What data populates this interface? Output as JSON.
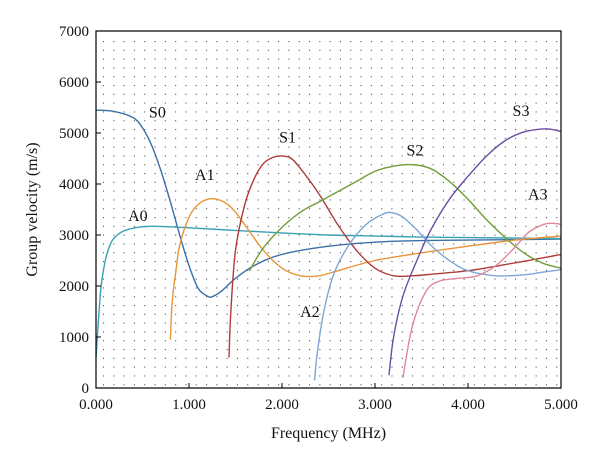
{
  "chart_data": {
    "type": "line",
    "title": "",
    "xlabel": "Frequency (MHz)",
    "ylabel": "Group velocity (m/s)",
    "xlim": [
      0,
      5
    ],
    "ylim": [
      0,
      7000
    ],
    "x_ticks": [
      0,
      1,
      2,
      3,
      4,
      5
    ],
    "x_tick_labels": [
      "0.000",
      "1.000",
      "2.000",
      "3.000",
      "4.000",
      "5.000"
    ],
    "y_ticks": [
      0,
      1000,
      2000,
      3000,
      4000,
      5000,
      6000,
      7000
    ],
    "y_tick_labels": [
      "0",
      "1000",
      "2000",
      "3000",
      "4000",
      "5000",
      "6000",
      "7000"
    ],
    "grid": "dotted",
    "legend": "none",
    "series": [
      {
        "name": "S0",
        "color": "#3a6fa8",
        "x": [
          0,
          0.2,
          0.4,
          0.5,
          0.6,
          0.7,
          0.8,
          0.9,
          1.0,
          1.1,
          1.2,
          1.25,
          1.35,
          1.5,
          1.7,
          2.0,
          2.5,
          3.0,
          3.5,
          4.0,
          4.5,
          5.0
        ],
        "y": [
          5450,
          5420,
          5300,
          5100,
          4750,
          4250,
          3650,
          3000,
          2400,
          1950,
          1800,
          1790,
          1900,
          2150,
          2400,
          2620,
          2780,
          2860,
          2890,
          2900,
          2910,
          2920
        ]
      },
      {
        "name": "A0",
        "color": "#3aa1b5",
        "x": [
          0,
          0.05,
          0.1,
          0.15,
          0.2,
          0.3,
          0.45,
          0.6,
          0.8,
          1.0,
          1.5,
          2.0,
          2.5,
          3.0,
          3.5,
          4.0,
          4.5,
          5.0
        ],
        "y": [
          600,
          1900,
          2500,
          2800,
          2950,
          3080,
          3150,
          3170,
          3160,
          3140,
          3090,
          3040,
          3000,
          2980,
          2960,
          2950,
          2940,
          2930
        ]
      },
      {
        "name": "A1",
        "color": "#e8953a",
        "x": [
          0.8,
          0.82,
          0.86,
          0.9,
          1.0,
          1.1,
          1.2,
          1.3,
          1.4,
          1.5,
          1.6,
          1.8,
          2.0,
          2.2,
          2.4,
          2.6,
          3.0,
          3.5,
          4.0,
          4.5,
          5.0
        ],
        "y": [
          950,
          1700,
          2300,
          2800,
          3350,
          3600,
          3700,
          3700,
          3620,
          3450,
          3200,
          2700,
          2350,
          2200,
          2200,
          2300,
          2500,
          2650,
          2780,
          2900,
          2980
        ]
      },
      {
        "name": "S1",
        "color": "#b03a3a",
        "x": [
          1.43,
          1.45,
          1.5,
          1.6,
          1.7,
          1.8,
          1.9,
          2.0,
          2.1,
          2.2,
          2.4,
          2.6,
          2.8,
          3.0,
          3.2,
          3.4,
          3.6,
          4.0,
          4.4,
          4.8,
          5.0
        ],
        "y": [
          600,
          1500,
          2700,
          3600,
          4100,
          4400,
          4520,
          4550,
          4500,
          4300,
          3800,
          3200,
          2700,
          2350,
          2200,
          2200,
          2230,
          2300,
          2420,
          2550,
          2620
        ]
      },
      {
        "name": "S2",
        "color": "#6f9e3a",
        "x": [
          1.65,
          1.8,
          2.0,
          2.2,
          2.4,
          2.6,
          2.8,
          3.0,
          3.2,
          3.4,
          3.6,
          3.8,
          4.0,
          4.2,
          4.4,
          4.6,
          4.8,
          5.0
        ],
        "y": [
          2300,
          2750,
          3150,
          3450,
          3650,
          3850,
          4050,
          4250,
          4350,
          4380,
          4300,
          4050,
          3700,
          3300,
          2950,
          2650,
          2450,
          2350
        ]
      },
      {
        "name": "A2",
        "color": "#7fa6d6",
        "x": [
          2.35,
          2.38,
          2.45,
          2.55,
          2.7,
          2.9,
          3.1,
          3.2,
          3.3,
          3.45,
          3.6,
          3.8,
          4.0,
          4.3,
          4.6,
          4.8,
          5.0
        ],
        "y": [
          150,
          700,
          1500,
          2200,
          2750,
          3200,
          3420,
          3430,
          3350,
          3100,
          2800,
          2500,
          2300,
          2200,
          2220,
          2270,
          2320
        ]
      },
      {
        "name": "S3",
        "color": "#6a4fa3",
        "x": [
          3.15,
          3.2,
          3.3,
          3.45,
          3.6,
          3.8,
          4.0,
          4.2,
          4.4,
          4.6,
          4.8,
          4.9,
          5.0
        ],
        "y": [
          250,
          1000,
          1800,
          2500,
          3100,
          3700,
          4150,
          4550,
          4850,
          5020,
          5080,
          5070,
          5030
        ]
      },
      {
        "name": "A3",
        "color": "#e0889a",
        "x": [
          3.3,
          3.4,
          3.55,
          3.7,
          3.9,
          4.1,
          4.3,
          4.5,
          4.65,
          4.8,
          4.9,
          5.0
        ],
        "y": [
          200,
          1200,
          1900,
          2100,
          2150,
          2200,
          2400,
          2750,
          3050,
          3200,
          3230,
          3210
        ]
      }
    ],
    "annotations": [
      {
        "text": "S0",
        "x": 0.66,
        "y": 5300
      },
      {
        "text": "A0",
        "x": 0.45,
        "y": 3270
      },
      {
        "text": "A1",
        "x": 1.17,
        "y": 4080
      },
      {
        "text": "S1",
        "x": 2.06,
        "y": 4810
      },
      {
        "text": "A2",
        "x": 2.3,
        "y": 1390
      },
      {
        "text": "S2",
        "x": 3.43,
        "y": 4560
      },
      {
        "text": "S3",
        "x": 4.57,
        "y": 5330
      },
      {
        "text": "A3",
        "x": 4.75,
        "y": 3700
      }
    ]
  }
}
